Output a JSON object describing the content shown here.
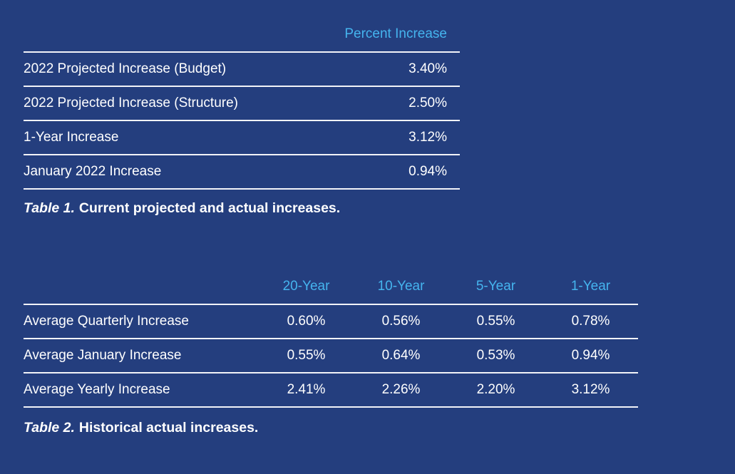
{
  "colors": {
    "background": "#243E7E",
    "accent_blue": "#45B4EE",
    "text": "#FFFFFF",
    "rule_line": "#F2F3F8"
  },
  "chart_data": [
    {
      "type": "table",
      "title": "Table 1. Current projected and actual increases.",
      "columns": [
        "",
        "Percent Increase"
      ],
      "rows": [
        [
          "2022 Projected Increase (Budget)",
          "3.40%"
        ],
        [
          "2022 Projected Increase (Structure)",
          "2.50%"
        ],
        [
          "1-Year Increase",
          "3.12%"
        ],
        [
          "January 2022 Increase",
          "0.94%"
        ]
      ],
      "caption": {
        "label": "Table 1.",
        "text": "Current projected and actual increases."
      },
      "layout": {
        "header_color": "#45B4EE",
        "value_align": "right",
        "grid": "horizontal-rules"
      }
    },
    {
      "type": "table",
      "title": "Table 2. Historical actual increases.",
      "columns": [
        "",
        "20-Year",
        "10-Year",
        "5-Year",
        "1-Year"
      ],
      "rows": [
        [
          "Average Quarterly Increase",
          "0.60%",
          "0.56%",
          "0.55%",
          "0.78%"
        ],
        [
          "Average January Increase",
          "0.55%",
          "0.64%",
          "0.53%",
          "0.94%"
        ],
        [
          "Average Yearly Increase",
          "2.41%",
          "2.26%",
          "2.20%",
          "3.12%"
        ]
      ],
      "caption": {
        "label": "Table 2.",
        "text": "Historical actual increases."
      },
      "layout": {
        "header_color": "#45B4EE",
        "value_align": "center",
        "grid": "horizontal-rules"
      }
    }
  ]
}
